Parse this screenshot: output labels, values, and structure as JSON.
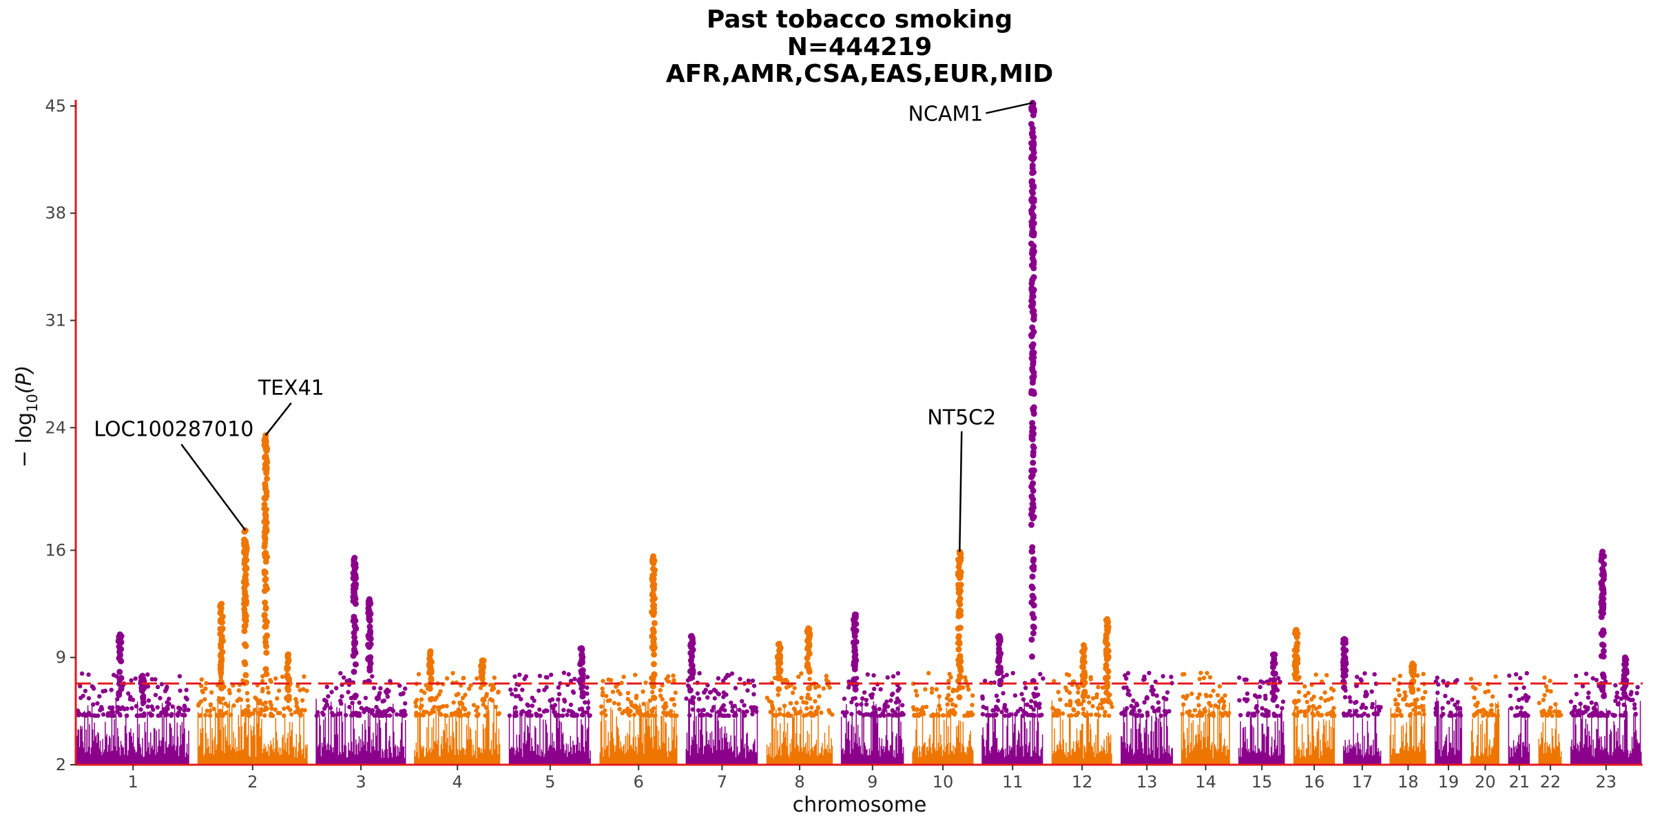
{
  "chart_data": {
    "type": "scatter",
    "title_lines": [
      "Past tobacco smoking",
      "N=444219",
      "AFR,AMR,CSA,EAS,EUR,MID"
    ],
    "xlabel": "chromosome",
    "ylabel_parts": {
      "prefix": "− log",
      "subscript": "10",
      "suffix": "(P)"
    },
    "y_ticks": [
      2,
      9,
      16,
      24,
      31,
      38,
      45
    ],
    "ylim": [
      2,
      45.4
    ],
    "significance_threshold": 7.3,
    "colors": {
      "odd": "#8B008B",
      "even": "#EE7600",
      "axis": "#E31A1C",
      "threshold": "#E31A1C"
    },
    "chromosomes": [
      {
        "label": "1",
        "start": 0,
        "length": 248
      },
      {
        "label": "2",
        "start": 268,
        "length": 242
      },
      {
        "label": "3",
        "start": 530,
        "length": 198
      },
      {
        "label": "4",
        "start": 748,
        "length": 190
      },
      {
        "label": "5",
        "start": 958,
        "length": 181
      },
      {
        "label": "6",
        "start": 1159,
        "length": 171
      },
      {
        "label": "7",
        "start": 1350,
        "length": 159
      },
      {
        "label": "8",
        "start": 1529,
        "length": 145
      },
      {
        "label": "9",
        "start": 1694,
        "length": 138
      },
      {
        "label": "10",
        "start": 1852,
        "length": 134
      },
      {
        "label": "11",
        "start": 2006,
        "length": 135
      },
      {
        "label": "12",
        "start": 2161,
        "length": 133
      },
      {
        "label": "13",
        "start": 2314,
        "length": 114
      },
      {
        "label": "14",
        "start": 2448,
        "length": 107
      },
      {
        "label": "15",
        "start": 2575,
        "length": 102
      },
      {
        "label": "16",
        "start": 2697,
        "length": 90
      },
      {
        "label": "17",
        "start": 2807,
        "length": 83
      },
      {
        "label": "18",
        "start": 2910,
        "length": 80
      },
      {
        "label": "19",
        "start": 3010,
        "length": 59
      },
      {
        "label": "20",
        "start": 3089,
        "length": 64
      },
      {
        "label": "21",
        "start": 3173,
        "length": 47
      },
      {
        "label": "22",
        "start": 3240,
        "length": 51
      },
      {
        "label": "23",
        "start": 3311,
        "length": 156
      }
    ],
    "x_range": [
      -3,
      3470
    ],
    "peaks": [
      {
        "chr": "1",
        "pos": 95,
        "p": 10.5
      },
      {
        "chr": "1",
        "pos": 145,
        "p": 7.8
      },
      {
        "chr": "2",
        "pos": 52,
        "p": 12.5
      },
      {
        "chr": "2",
        "pos": 105,
        "p": 17.3
      },
      {
        "chr": "2",
        "pos": 150,
        "p": 23.5
      },
      {
        "chr": "2",
        "pos": 200,
        "p": 9.2
      },
      {
        "chr": "3",
        "pos": 85,
        "p": 15.5
      },
      {
        "chr": "3",
        "pos": 118,
        "p": 12.8
      },
      {
        "chr": "4",
        "pos": 35,
        "p": 9.4
      },
      {
        "chr": "4",
        "pos": 150,
        "p": 8.8
      },
      {
        "chr": "5",
        "pos": 160,
        "p": 9.6
      },
      {
        "chr": "6",
        "pos": 118,
        "p": 15.6
      },
      {
        "chr": "7",
        "pos": 12,
        "p": 10.4
      },
      {
        "chr": "8",
        "pos": 27,
        "p": 9.9
      },
      {
        "chr": "8",
        "pos": 92,
        "p": 10.9
      },
      {
        "chr": "9",
        "pos": 30,
        "p": 11.8
      },
      {
        "chr": "10",
        "pos": 104,
        "p": 15.9
      },
      {
        "chr": "11",
        "pos": 112,
        "p": 45.2
      },
      {
        "chr": "11",
        "pos": 38,
        "p": 10.4
      },
      {
        "chr": "12",
        "pos": 122,
        "p": 11.5
      },
      {
        "chr": "12",
        "pos": 70,
        "p": 9.8
      },
      {
        "chr": "15",
        "pos": 78,
        "p": 9.2
      },
      {
        "chr": "16",
        "pos": 5,
        "p": 10.8
      },
      {
        "chr": "17",
        "pos": 2,
        "p": 10.2
      },
      {
        "chr": "18",
        "pos": 50,
        "p": 8.6
      },
      {
        "chr": "23",
        "pos": 70,
        "p": 15.9
      },
      {
        "chr": "23",
        "pos": 120,
        "p": 9.0
      }
    ],
    "annotations": [
      {
        "gene": "LOC100287010",
        "chr": "2",
        "pos": 105,
        "p": 17.3
      },
      {
        "gene": "TEX41",
        "chr": "2",
        "pos": 150,
        "p": 23.5
      },
      {
        "gene": "NT5C2",
        "chr": "10",
        "pos": 104,
        "p": 15.9
      },
      {
        "gene": "NCAM1",
        "chr": "11",
        "pos": 112,
        "p": 45.2
      }
    ]
  }
}
